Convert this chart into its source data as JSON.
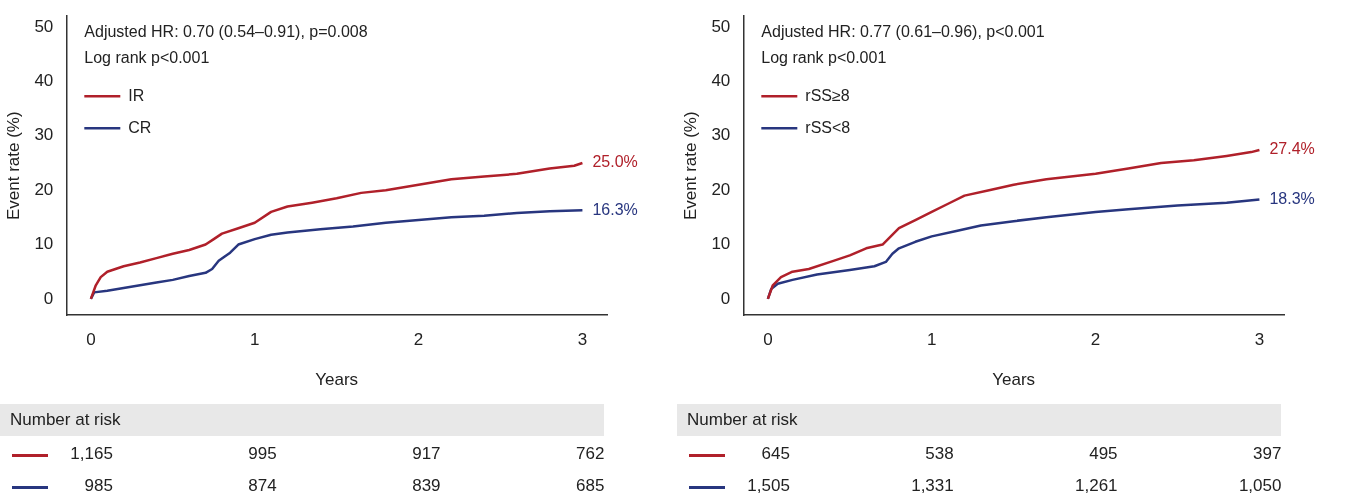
{
  "chart_data": [
    {
      "type": "line",
      "xlabel": "Years",
      "ylabel": "Event rate (%)",
      "xlim": [
        -0.15,
        3.15
      ],
      "ylim": [
        -3,
        52
      ],
      "xticks": [
        0,
        1,
        2,
        3
      ],
      "yticks": [
        0,
        10,
        20,
        30,
        40,
        50
      ],
      "legend": "top left",
      "grid": false,
      "marker": "none",
      "line_style": "solid",
      "annotations": [
        "Adjusted HR: 0.70 (0.54–0.91), p=0.008",
        "Log rank p<0.001",
        "Number at risk",
        "1,165",
        "995",
        "917",
        "762",
        "985",
        "874",
        "839",
        "685"
      ],
      "series": [
        {
          "name": "IR",
          "color": "#b0202a",
          "x": [
            0,
            0.03,
            0.06,
            0.1,
            0.2,
            0.3,
            0.4,
            0.5,
            0.6,
            0.7,
            0.75,
            0.8,
            0.9,
            1.0,
            1.1,
            1.2,
            1.35,
            1.5,
            1.65,
            1.8,
            2.0,
            2.2,
            2.4,
            2.6,
            2.8,
            2.95,
            3.0
          ],
          "values": [
            0,
            2.5,
            4,
            5,
            6,
            6.7,
            7.5,
            8.3,
            9,
            10,
            11,
            12,
            13,
            14,
            16,
            17,
            17.7,
            18.5,
            19.5,
            20,
            21,
            22,
            22.5,
            23,
            24,
            24.5,
            25
          ],
          "value_labels": [
            null,
            null,
            null,
            null,
            null,
            null,
            null,
            null,
            null,
            null,
            null,
            null,
            null,
            null,
            null,
            null,
            null,
            null,
            null,
            null,
            null,
            null,
            null,
            null,
            null,
            null,
            "25.0%"
          ]
        },
        {
          "name": "CR",
          "color": "#28367f",
          "x": [
            0,
            0.02,
            0.1,
            0.2,
            0.3,
            0.4,
            0.5,
            0.6,
            0.7,
            0.74,
            0.78,
            0.85,
            0.9,
            1.0,
            1.1,
            1.2,
            1.4,
            1.6,
            1.8,
            2.0,
            2.2,
            2.4,
            2.6,
            2.8,
            3.0
          ],
          "values": [
            0,
            1.2,
            1.5,
            2,
            2.5,
            3,
            3.5,
            4.2,
            4.8,
            5.5,
            7,
            8.5,
            10,
            11,
            11.8,
            12.2,
            12.8,
            13.3,
            14,
            14.5,
            15,
            15.3,
            15.8,
            16.1,
            16.3
          ],
          "value_labels": [
            null,
            null,
            null,
            null,
            null,
            null,
            null,
            null,
            null,
            null,
            null,
            null,
            null,
            null,
            null,
            null,
            null,
            null,
            null,
            null,
            null,
            null,
            null,
            null,
            "16.3%"
          ]
        }
      ]
    },
    {
      "type": "line",
      "xlabel": "Years",
      "ylabel": "Event rate (%)",
      "xlim": [
        -0.15,
        3.15
      ],
      "ylim": [
        -3,
        52
      ],
      "xticks": [
        0,
        1,
        2,
        3
      ],
      "yticks": [
        0,
        10,
        20,
        30,
        40,
        50
      ],
      "legend": "top left",
      "grid": false,
      "marker": "none",
      "line_style": "solid",
      "annotations": [
        "Adjusted HR: 0.77 (0.61–0.96), p<0.001",
        "Log rank p<0.001",
        "Number at risk",
        "645",
        "538",
        "495",
        "397",
        "1,505",
        "1,331",
        "1,261",
        "1,050"
      ],
      "series": [
        {
          "name": "rSS≥8",
          "color": "#b0202a",
          "x": [
            0,
            0.03,
            0.08,
            0.15,
            0.25,
            0.4,
            0.5,
            0.6,
            0.7,
            0.75,
            0.8,
            0.9,
            1.0,
            1.1,
            1.2,
            1.35,
            1.5,
            1.7,
            2.0,
            2.2,
            2.4,
            2.6,
            2.8,
            2.95,
            3.0
          ],
          "values": [
            0,
            2.5,
            4,
            5,
            5.5,
            7,
            8,
            9.3,
            10,
            11.5,
            13,
            14.5,
            16,
            17.5,
            19,
            20,
            21,
            22,
            23,
            24,
            25,
            25.5,
            26.3,
            27,
            27.4
          ],
          "value_labels": [
            null,
            null,
            null,
            null,
            null,
            null,
            null,
            null,
            null,
            null,
            null,
            null,
            null,
            null,
            null,
            null,
            null,
            null,
            null,
            null,
            null,
            null,
            null,
            null,
            "27.4%"
          ]
        },
        {
          "name": "rSS<8",
          "color": "#28367f",
          "x": [
            0,
            0.02,
            0.06,
            0.15,
            0.3,
            0.5,
            0.65,
            0.72,
            0.76,
            0.8,
            0.9,
            1.0,
            1.15,
            1.3,
            1.5,
            1.7,
            2.0,
            2.2,
            2.5,
            2.8,
            3.0
          ],
          "values": [
            0,
            1.8,
            2.8,
            3.5,
            4.5,
            5.3,
            6,
            6.8,
            8.3,
            9.3,
            10.5,
            11.5,
            12.5,
            13.5,
            14.3,
            15,
            16,
            16.5,
            17.2,
            17.7,
            18.3
          ],
          "value_labels": [
            null,
            null,
            null,
            null,
            null,
            null,
            null,
            null,
            null,
            null,
            null,
            null,
            null,
            null,
            null,
            null,
            null,
            null,
            null,
            null,
            "18.3%"
          ]
        }
      ]
    }
  ]
}
